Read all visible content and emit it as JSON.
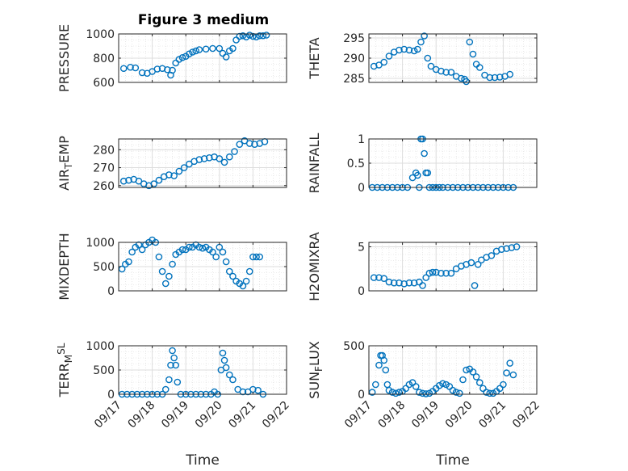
{
  "figure": {
    "title": "Figure 3 medium",
    "marker_color": "#0072BD",
    "marker": "open-circle"
  },
  "chart_data": [
    {
      "type": "scatter",
      "title": "Figure 3 medium",
      "ylabel_parts": [
        {
          "t": "PRESSURE"
        }
      ],
      "xlabel": "",
      "ylim": [
        600,
        1000
      ],
      "yticks": [
        "600",
        "800",
        "1000"
      ],
      "xlim": [
        "09/17",
        "09/22"
      ],
      "xticklabels": [],
      "grid": true,
      "series": [
        {
          "x": [
            0.15,
            0.35,
            0.5,
            0.7,
            0.85,
            1.0,
            1.15,
            1.3,
            1.45,
            1.55,
            1.6,
            1.7,
            1.8,
            1.9,
            2.0,
            2.1,
            2.2,
            2.3,
            2.4,
            2.6,
            2.8,
            3.0,
            3.1,
            3.2,
            3.3,
            3.4,
            3.5,
            3.6,
            3.7,
            3.8,
            3.9,
            4.0,
            4.1,
            4.2,
            4.3,
            4.4
          ],
          "y": [
            715,
            725,
            720,
            680,
            675,
            690,
            710,
            715,
            705,
            660,
            700,
            760,
            790,
            805,
            815,
            835,
            850,
            860,
            870,
            875,
            880,
            880,
            840,
            810,
            860,
            880,
            950,
            980,
            985,
            975,
            990,
            980,
            975,
            985,
            985,
            990
          ]
        }
      ]
    },
    {
      "type": "scatter",
      "title": "",
      "ylabel_parts": [
        {
          "t": "THETA"
        }
      ],
      "xlabel": "",
      "ylim": [
        284,
        296
      ],
      "yticks": [
        "285",
        "290",
        "295"
      ],
      "xlim": [
        "09/17",
        "09/22"
      ],
      "xticklabels": [],
      "grid": true,
      "series": [
        {
          "x": [
            0.15,
            0.3,
            0.45,
            0.6,
            0.75,
            0.9,
            1.05,
            1.2,
            1.35,
            1.45,
            1.55,
            1.65,
            1.75,
            1.85,
            2.0,
            2.15,
            2.3,
            2.45,
            2.6,
            2.75,
            2.85,
            2.9,
            3.0,
            3.1,
            3.2,
            3.3,
            3.45,
            3.6,
            3.75,
            3.9,
            4.05,
            4.2
          ],
          "y": [
            288,
            288.3,
            289,
            290.5,
            291.5,
            292,
            292.2,
            292,
            291.8,
            292.2,
            294,
            295.5,
            290,
            288,
            287.2,
            286.8,
            286.5,
            286.5,
            285.5,
            285,
            284.8,
            284.2,
            294,
            291,
            288.5,
            287.7,
            285.8,
            285.2,
            285.2,
            285.3,
            285.5,
            286
          ]
        }
      ]
    },
    {
      "type": "scatter",
      "title": "",
      "ylabel_parts": [
        {
          "t": "AIR"
        },
        {
          "t": "T",
          "sub": true
        },
        {
          "t": "EMP"
        }
      ],
      "xlabel": "",
      "ylim": [
        259,
        286
      ],
      "yticks": [
        "260",
        "270",
        "280"
      ],
      "xlim": [
        "09/17",
        "09/22"
      ],
      "xticklabels": [],
      "grid": true,
      "series": [
        {
          "x": [
            0.15,
            0.3,
            0.45,
            0.6,
            0.75,
            0.9,
            1.05,
            1.2,
            1.35,
            1.5,
            1.65,
            1.8,
            1.95,
            2.1,
            2.25,
            2.4,
            2.55,
            2.7,
            2.85,
            3.0,
            3.15,
            3.3,
            3.45,
            3.6,
            3.75,
            3.9,
            4.05,
            4.2,
            4.35
          ],
          "y": [
            262.5,
            263,
            263.5,
            262.5,
            261,
            260,
            261,
            263,
            265,
            266,
            265.5,
            268,
            270,
            272,
            273.5,
            274.5,
            275,
            275.5,
            276,
            275,
            273,
            276,
            279,
            283,
            285,
            283.5,
            283,
            283.5,
            284.5
          ]
        }
      ]
    },
    {
      "type": "scatter",
      "title": "",
      "ylabel_parts": [
        {
          "t": "RAINFALL"
        }
      ],
      "xlabel": "",
      "ylim": [
        0,
        1
      ],
      "yticks": [
        "0",
        "0.5",
        "1"
      ],
      "xlim": [
        "09/17",
        "09/22"
      ],
      "xticklabels": [],
      "grid": true,
      "series": [
        {
          "x": [
            0.1,
            0.25,
            0.4,
            0.55,
            0.7,
            0.85,
            1.0,
            1.15,
            1.3,
            1.4,
            1.45,
            1.5,
            1.55,
            1.6,
            1.65,
            1.7,
            1.75,
            1.8,
            1.9,
            2.0,
            2.1,
            2.2,
            2.35,
            2.5,
            2.65,
            2.8,
            2.95,
            3.1,
            3.25,
            3.4,
            3.55,
            3.7,
            3.85,
            4.0,
            4.15,
            4.3
          ],
          "y": [
            0,
            0,
            0,
            0,
            0,
            0,
            0,
            0,
            0.2,
            0.3,
            0.25,
            0,
            1,
            1,
            0.7,
            0.3,
            0.3,
            0,
            0,
            0,
            0,
            0,
            0,
            0,
            0,
            0,
            0,
            0,
            0,
            0,
            0,
            0,
            0,
            0,
            0,
            0
          ]
        }
      ]
    },
    {
      "type": "scatter",
      "title": "",
      "ylabel_parts": [
        {
          "t": "MIXDEPTH"
        }
      ],
      "xlabel": "",
      "ylim": [
        0,
        1000
      ],
      "yticks": [
        "0",
        "500",
        "1000"
      ],
      "xlim": [
        "09/17",
        "09/22"
      ],
      "xticklabels": [],
      "grid": true,
      "series": [
        {
          "x": [
            0.1,
            0.2,
            0.3,
            0.4,
            0.5,
            0.6,
            0.7,
            0.8,
            0.9,
            1.0,
            1.1,
            1.2,
            1.3,
            1.4,
            1.5,
            1.6,
            1.7,
            1.8,
            1.9,
            2.0,
            2.1,
            2.2,
            2.3,
            2.4,
            2.5,
            2.6,
            2.7,
            2.8,
            2.9,
            3.0,
            3.1,
            3.2,
            3.3,
            3.4,
            3.5,
            3.6,
            3.7,
            3.8,
            3.9,
            4.0,
            4.1,
            4.2
          ],
          "y": [
            450,
            550,
            600,
            800,
            900,
            950,
            850,
            950,
            1000,
            1050,
            1000,
            700,
            400,
            150,
            300,
            550,
            750,
            800,
            850,
            850,
            900,
            900,
            950,
            900,
            880,
            900,
            850,
            800,
            700,
            900,
            800,
            600,
            400,
            300,
            200,
            150,
            100,
            200,
            400,
            700,
            700,
            700
          ]
        }
      ]
    },
    {
      "type": "scatter",
      "title": "",
      "ylabel_parts": [
        {
          "t": "H2OMIXRA"
        }
      ],
      "xlabel": "",
      "ylim": [
        0,
        5.5
      ],
      "yticks": [
        "0",
        "5"
      ],
      "xlim": [
        "09/17",
        "09/22"
      ],
      "xticklabels": [],
      "grid": true,
      "series": [
        {
          "x": [
            0.15,
            0.3,
            0.45,
            0.6,
            0.75,
            0.9,
            1.05,
            1.2,
            1.35,
            1.5,
            1.6,
            1.7,
            1.8,
            1.9,
            2.0,
            2.15,
            2.3,
            2.45,
            2.6,
            2.75,
            2.9,
            3.05,
            3.15,
            3.25,
            3.35,
            3.5,
            3.65,
            3.8,
            3.95,
            4.1,
            4.25,
            4.4
          ],
          "y": [
            1.5,
            1.5,
            1.4,
            1.0,
            0.9,
            0.9,
            0.8,
            0.9,
            0.9,
            1.0,
            0.6,
            1.5,
            2.0,
            2.1,
            2.1,
            2.0,
            2.0,
            2.0,
            2.5,
            2.8,
            3.0,
            3.2,
            0.6,
            3.0,
            3.5,
            3.8,
            4.0,
            4.5,
            4.7,
            4.8,
            4.9,
            5.0
          ]
        }
      ]
    },
    {
      "type": "scatter",
      "title": "",
      "ylabel_parts": [
        {
          "t": "TERR"
        },
        {
          "t": "M",
          "sub": true
        },
        {
          "t": "SL",
          "sup": true
        }
      ],
      "xlabel": "Time",
      "ylim": [
        0,
        1000
      ],
      "yticks": [
        "0",
        "500",
        "1000"
      ],
      "xlim": [
        "09/17",
        "09/22"
      ],
      "xticklabels": [
        "09/17",
        "09/18",
        "09/19",
        "09/20",
        "09/21",
        "09/22"
      ],
      "grid": true,
      "series": [
        {
          "x": [
            0.1,
            0.25,
            0.4,
            0.55,
            0.7,
            0.85,
            1.0,
            1.15,
            1.3,
            1.4,
            1.5,
            1.55,
            1.6,
            1.65,
            1.7,
            1.75,
            1.85,
            2.0,
            2.15,
            2.3,
            2.45,
            2.6,
            2.75,
            2.85,
            2.95,
            3.05,
            3.1,
            3.15,
            3.2,
            3.3,
            3.4,
            3.55,
            3.7,
            3.85,
            4.0,
            4.15,
            4.3
          ],
          "y": [
            0,
            0,
            0,
            0,
            0,
            0,
            0,
            0,
            0,
            100,
            300,
            600,
            900,
            750,
            600,
            250,
            0,
            0,
            0,
            0,
            0,
            0,
            0,
            50,
            0,
            500,
            850,
            700,
            550,
            400,
            300,
            100,
            50,
            50,
            100,
            80,
            0
          ]
        }
      ]
    },
    {
      "type": "scatter",
      "title": "",
      "ylabel_parts": [
        {
          "t": "SUN"
        },
        {
          "t": "F",
          "sub": true
        },
        {
          "t": "LUX"
        }
      ],
      "xlabel": "Time",
      "ylim": [
        0,
        500
      ],
      "yticks": [
        "0",
        "500"
      ],
      "xlim": [
        "09/17",
        "09/22"
      ],
      "xticklabels": [
        "09/17",
        "09/18",
        "09/19",
        "09/20",
        "09/21",
        "09/22"
      ],
      "grid": true,
      "series": [
        {
          "x": [
            0.1,
            0.2,
            0.3,
            0.35,
            0.4,
            0.45,
            0.5,
            0.55,
            0.6,
            0.7,
            0.8,
            0.9,
            1.0,
            1.1,
            1.2,
            1.3,
            1.4,
            1.5,
            1.6,
            1.7,
            1.8,
            1.9,
            2.0,
            2.1,
            2.2,
            2.3,
            2.4,
            2.5,
            2.6,
            2.7,
            2.8,
            2.9,
            3.0,
            3.1,
            3.2,
            3.3,
            3.4,
            3.5,
            3.6,
            3.7,
            3.8,
            3.9,
            4.0,
            4.1,
            4.2,
            4.3
          ],
          "y": [
            20,
            100,
            300,
            400,
            400,
            350,
            250,
            100,
            40,
            20,
            10,
            20,
            30,
            60,
            100,
            120,
            80,
            20,
            10,
            5,
            10,
            30,
            60,
            90,
            110,
            100,
            80,
            40,
            20,
            10,
            150,
            250,
            260,
            230,
            180,
            120,
            60,
            20,
            10,
            10,
            30,
            60,
            100,
            220,
            320,
            200
          ]
        }
      ]
    }
  ]
}
